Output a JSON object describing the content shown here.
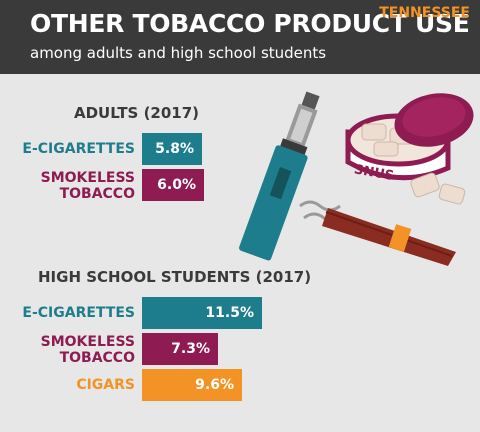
{
  "header": {
    "title": "OTHER TOBACCO PRODUCT USE",
    "subtitle": "among adults and high school students",
    "state": "TENNESSEE"
  },
  "illustration": {
    "snus_label": "SNUS",
    "icons": [
      "e-cigarette-icon",
      "snus-tin-icon",
      "cigar-icon"
    ]
  },
  "colors": {
    "header_bg": "#3a3a3a",
    "background": "#e7e7e7",
    "teal": "#1e7d8c",
    "maroon": "#8e1b52",
    "orange": "#f39325"
  },
  "chart_data": [
    {
      "type": "bar",
      "orientation": "horizontal",
      "title": "ADULTS (2017)",
      "categories": [
        "E-CIGARETTES",
        "SMOKELESS TOBACCO"
      ],
      "values": [
        5.8,
        6.0
      ],
      "value_labels": [
        "5.8%",
        "6.0%"
      ],
      "colors": [
        "#1e7d8c",
        "#8e1b52"
      ]
    },
    {
      "type": "bar",
      "orientation": "horizontal",
      "title": "HIGH SCHOOL STUDENTS (2017)",
      "categories": [
        "E-CIGARETTES",
        "SMOKELESS TOBACCO",
        "CIGARS"
      ],
      "values": [
        11.5,
        7.3,
        9.6
      ],
      "value_labels": [
        "11.5%",
        "7.3%",
        "9.6%"
      ],
      "colors": [
        "#1e7d8c",
        "#8e1b52",
        "#f39325"
      ]
    }
  ]
}
